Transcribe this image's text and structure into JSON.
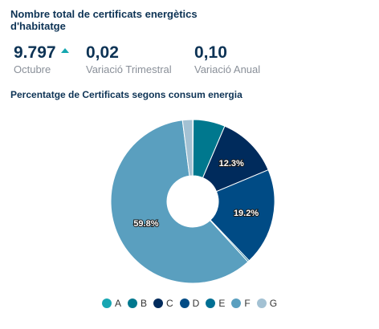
{
  "header": {
    "title": "Nombre total de certificats energètics d'habitatge"
  },
  "kpis": [
    {
      "value": "9.797",
      "label": "Octubre",
      "trend": "up-icon"
    },
    {
      "value": "0,02",
      "label": "Variació Trimestral"
    },
    {
      "value": "0,10",
      "label": "Variació Anual"
    }
  ],
  "chart_data": {
    "type": "pie",
    "title": "Percentatge de Certificats segons consum energia",
    "donut": true,
    "slices": [
      {
        "label": "A",
        "value": 0.1,
        "color": "#17a6b2",
        "data_label": ""
      },
      {
        "label": "B",
        "value": 6.3,
        "color": "#00788e",
        "data_label": ""
      },
      {
        "label": "C",
        "value": 12.3,
        "color": "#002b5c",
        "data_label": "12.3%"
      },
      {
        "label": "D",
        "value": 19.2,
        "color": "#004b85",
        "data_label": "19.2%"
      },
      {
        "label": "E",
        "value": 0.3,
        "color": "#006f93",
        "data_label": ""
      },
      {
        "label": "F",
        "value": 59.8,
        "color": "#5a9fbf",
        "data_label": "59.8%"
      },
      {
        "label": "G",
        "value": 2.0,
        "color": "#a3c1d3",
        "data_label": ""
      }
    ],
    "legend_position": "bottom-center"
  }
}
